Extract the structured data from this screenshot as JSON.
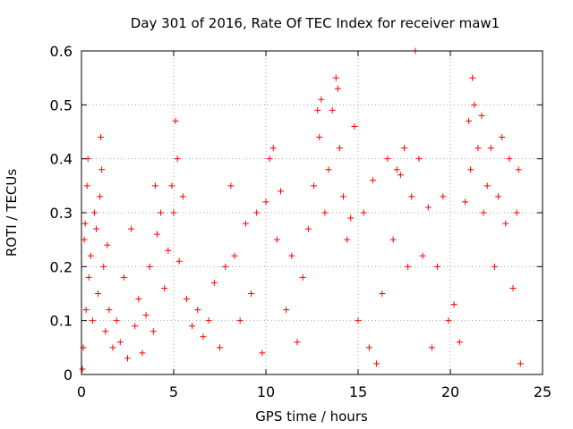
{
  "chart_data": {
    "type": "scatter",
    "title": "Day 301 of 2016, Rate Of TEC Index for receiver maw1",
    "xlabel": "GPS time / hours",
    "ylabel": "ROTI / TECUs",
    "xlim": [
      0,
      25
    ],
    "ylim": [
      0,
      0.6
    ],
    "x_ticks": [
      0,
      5,
      10,
      15,
      20,
      25
    ],
    "y_ticks": [
      0,
      0.1,
      0.2,
      0.3,
      0.4,
      0.5,
      0.6
    ],
    "x_tick_labels": [
      "0",
      "5",
      "10",
      "15",
      "20",
      "25"
    ],
    "y_tick_labels": [
      "0",
      "0.1",
      "0.2",
      "0.3",
      "0.4",
      "0.5",
      "0.6"
    ],
    "grid": true,
    "marker": "+",
    "color": "#ff0000",
    "series": [
      {
        "name": "ROTI",
        "points": [
          [
            0.05,
            0.01
          ],
          [
            0.1,
            0.05
          ],
          [
            0.15,
            0.25
          ],
          [
            0.2,
            0.28
          ],
          [
            0.25,
            0.12
          ],
          [
            0.3,
            0.35
          ],
          [
            0.35,
            0.4
          ],
          [
            0.4,
            0.18
          ],
          [
            0.5,
            0.22
          ],
          [
            0.6,
            0.1
          ],
          [
            0.7,
            0.3
          ],
          [
            0.8,
            0.27
          ],
          [
            0.9,
            0.15
          ],
          [
            1.0,
            0.33
          ],
          [
            1.05,
            0.44
          ],
          [
            1.1,
            0.38
          ],
          [
            1.2,
            0.2
          ],
          [
            1.3,
            0.08
          ],
          [
            1.4,
            0.24
          ],
          [
            1.5,
            0.12
          ],
          [
            1.7,
            0.05
          ],
          [
            1.9,
            0.1
          ],
          [
            2.1,
            0.06
          ],
          [
            2.3,
            0.18
          ],
          [
            2.5,
            0.03
          ],
          [
            2.7,
            0.27
          ],
          [
            2.9,
            0.09
          ],
          [
            3.1,
            0.14
          ],
          [
            3.3,
            0.04
          ],
          [
            3.5,
            0.11
          ],
          [
            3.7,
            0.2
          ],
          [
            3.9,
            0.08
          ],
          [
            4.0,
            0.35
          ],
          [
            4.1,
            0.26
          ],
          [
            4.3,
            0.3
          ],
          [
            4.5,
            0.16
          ],
          [
            4.7,
            0.23
          ],
          [
            4.9,
            0.35
          ],
          [
            5.0,
            0.3
          ],
          [
            5.1,
            0.47
          ],
          [
            5.2,
            0.4
          ],
          [
            5.3,
            0.21
          ],
          [
            5.5,
            0.33
          ],
          [
            5.7,
            0.14
          ],
          [
            6.0,
            0.09
          ],
          [
            6.3,
            0.12
          ],
          [
            6.6,
            0.07
          ],
          [
            6.9,
            0.1
          ],
          [
            7.2,
            0.17
          ],
          [
            7.5,
            0.05
          ],
          [
            7.8,
            0.2
          ],
          [
            8.1,
            0.35
          ],
          [
            8.3,
            0.22
          ],
          [
            8.6,
            0.1
          ],
          [
            8.9,
            0.28
          ],
          [
            9.2,
            0.15
          ],
          [
            9.5,
            0.3
          ],
          [
            9.8,
            0.04
          ],
          [
            10.0,
            0.32
          ],
          [
            10.2,
            0.4
          ],
          [
            10.4,
            0.42
          ],
          [
            10.6,
            0.25
          ],
          [
            10.8,
            0.34
          ],
          [
            11.1,
            0.12
          ],
          [
            11.4,
            0.22
          ],
          [
            11.7,
            0.06
          ],
          [
            12.0,
            0.18
          ],
          [
            12.3,
            0.27
          ],
          [
            12.6,
            0.35
          ],
          [
            12.8,
            0.49
          ],
          [
            12.9,
            0.44
          ],
          [
            13.0,
            0.51
          ],
          [
            13.2,
            0.3
          ],
          [
            13.4,
            0.38
          ],
          [
            13.6,
            0.49
          ],
          [
            13.8,
            0.55
          ],
          [
            13.9,
            0.53
          ],
          [
            14.0,
            0.42
          ],
          [
            14.2,
            0.33
          ],
          [
            14.4,
            0.25
          ],
          [
            14.6,
            0.29
          ],
          [
            14.8,
            0.46
          ],
          [
            15.0,
            0.1
          ],
          [
            15.3,
            0.3
          ],
          [
            15.6,
            0.05
          ],
          [
            15.8,
            0.36
          ],
          [
            16.0,
            0.02
          ],
          [
            16.3,
            0.15
          ],
          [
            16.6,
            0.4
          ],
          [
            16.9,
            0.25
          ],
          [
            17.1,
            0.38
          ],
          [
            17.3,
            0.37
          ],
          [
            17.5,
            0.42
          ],
          [
            17.7,
            0.2
          ],
          [
            17.9,
            0.33
          ],
          [
            18.1,
            0.6
          ],
          [
            18.3,
            0.4
          ],
          [
            18.5,
            0.22
          ],
          [
            18.8,
            0.31
          ],
          [
            19.0,
            0.05
          ],
          [
            19.3,
            0.2
          ],
          [
            19.6,
            0.33
          ],
          [
            19.9,
            0.1
          ],
          [
            20.2,
            0.13
          ],
          [
            20.5,
            0.06
          ],
          [
            20.8,
            0.32
          ],
          [
            21.0,
            0.47
          ],
          [
            21.1,
            0.38
          ],
          [
            21.2,
            0.55
          ],
          [
            21.3,
            0.5
          ],
          [
            21.5,
            0.42
          ],
          [
            21.7,
            0.48
          ],
          [
            21.8,
            0.3
          ],
          [
            22.0,
            0.35
          ],
          [
            22.2,
            0.42
          ],
          [
            22.4,
            0.2
          ],
          [
            22.6,
            0.33
          ],
          [
            22.8,
            0.44
          ],
          [
            23.0,
            0.28
          ],
          [
            23.2,
            0.4
          ],
          [
            23.4,
            0.16
          ],
          [
            23.6,
            0.3
          ],
          [
            23.7,
            0.38
          ],
          [
            23.8,
            0.02
          ]
        ]
      }
    ]
  }
}
